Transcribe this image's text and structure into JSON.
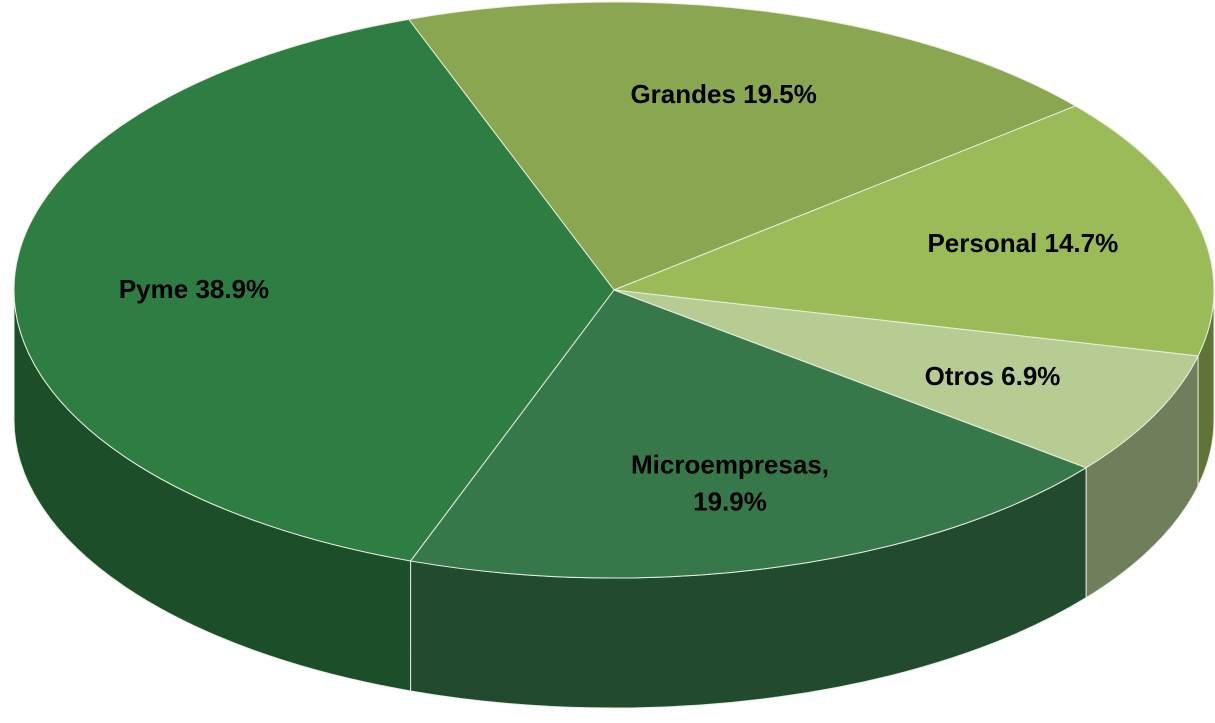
{
  "chart_data": {
    "type": "pie3d",
    "categories": [
      "Grandes",
      "Personal",
      "Otros",
      "Microempresas",
      "Pyme"
    ],
    "values": [
      19.5,
      14.7,
      6.9,
      19.9,
      38.9
    ],
    "value_labels": [
      "Grandes 19.5%",
      "Personal 14.7%",
      "Otros 6.9%",
      "Microempresas, 19.9%",
      "Pyme 38.9%"
    ],
    "colors": [
      "#8aa651",
      "#9bbb59",
      "#b7cc92",
      "#37784b",
      "#2e7d43"
    ]
  }
}
